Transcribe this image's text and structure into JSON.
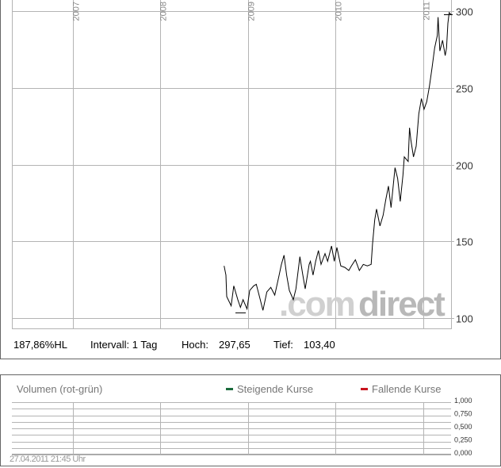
{
  "chart_data": [
    {
      "type": "line",
      "xlabel": "",
      "ylabel": "",
      "x_ticks": [
        "2007",
        "2008",
        "2009",
        "2010",
        "2011"
      ],
      "y_ticks": [
        "100",
        "150",
        "200",
        "250",
        "300"
      ],
      "xlim": [
        2006.3,
        2011.4
      ],
      "ylim": [
        97,
        300
      ],
      "grid": true,
      "series": [
        {
          "points": [
            [
              2008.727,
              134
            ],
            [
              2008.748,
              128
            ],
            [
              2008.757,
              114
            ],
            [
              2008.808,
              108
            ],
            [
              2008.838,
              121
            ],
            [
              2008.884,
              112
            ],
            [
              2008.914,
              107
            ],
            [
              2008.944,
              112
            ],
            [
              2008.989,
              106
            ],
            [
              2009.02,
              118
            ],
            [
              2009.065,
              121
            ],
            [
              2009.095,
              122
            ],
            [
              2009.14,
              112
            ],
            [
              2009.171,
              105
            ],
            [
              2009.216,
              117
            ],
            [
              2009.261,
              120
            ],
            [
              2009.306,
              115
            ],
            [
              2009.352,
              127
            ],
            [
              2009.382,
              135
            ],
            [
              2009.412,
              141
            ],
            [
              2009.442,
              128
            ],
            [
              2009.473,
              118
            ],
            [
              2009.518,
              112
            ],
            [
              2009.548,
              119
            ],
            [
              2009.593,
              140
            ],
            [
              2009.624,
              129
            ],
            [
              2009.654,
              119
            ],
            [
              2009.699,
              135
            ],
            [
              2009.714,
              137
            ],
            [
              2009.744,
              128
            ],
            [
              2009.774,
              137
            ],
            [
              2009.805,
              144
            ],
            [
              2009.835,
              135
            ],
            [
              2009.88,
              142
            ],
            [
              2009.91,
              137
            ],
            [
              2009.955,
              147
            ],
            [
              2009.986,
              137
            ],
            [
              2010.016,
              146
            ],
            [
              2010.061,
              134
            ],
            [
              2010.107,
              133
            ],
            [
              2010.152,
              131
            ],
            [
              2010.182,
              134
            ],
            [
              2010.227,
              138
            ],
            [
              2010.273,
              131
            ],
            [
              2010.318,
              135
            ],
            [
              2010.363,
              134
            ],
            [
              2010.408,
              135
            ],
            [
              2010.423,
              148
            ],
            [
              2010.448,
              164
            ],
            [
              2010.469,
              171
            ],
            [
              2010.508,
              160
            ],
            [
              2010.544,
              167
            ],
            [
              2010.574,
              177
            ],
            [
              2010.605,
              186
            ],
            [
              2010.635,
              172
            ],
            [
              2010.68,
              198
            ],
            [
              2010.71,
              191
            ],
            [
              2010.74,
              176
            ],
            [
              2010.771,
              193
            ],
            [
              2010.786,
              205
            ],
            [
              2010.831,
              202
            ],
            [
              2010.846,
              224
            ],
            [
              2010.861,
              216
            ],
            [
              2010.891,
              205
            ],
            [
              2010.922,
              212
            ],
            [
              2010.952,
              233
            ],
            [
              2010.982,
              243
            ],
            [
              2011.012,
              236
            ],
            [
              2011.043,
              241
            ],
            [
              2011.073,
              251
            ],
            [
              2011.103,
              263
            ],
            [
              2011.133,
              276
            ],
            [
              2011.163,
              284
            ],
            [
              2011.172,
              296
            ],
            [
              2011.193,
              274
            ],
            [
              2011.224,
              281
            ],
            [
              2011.254,
              271
            ],
            [
              2011.269,
              276
            ],
            [
              2011.284,
              292
            ],
            [
              2011.299,
              299
            ],
            [
              2011.323,
              297.65
            ]
          ]
        }
      ],
      "high": 297.65,
      "low": 103.4,
      "watermark": ".comdirect"
    },
    {
      "type": "bar",
      "title": "Volumen (rot-grün)",
      "legend": [
        {
          "name": "Steigende Kurse",
          "color": "#1a6b3c"
        },
        {
          "name": "Fallende Kurse",
          "color": "#c8141e"
        }
      ],
      "legend_placement": "top-right",
      "y_ticks": [
        "1,000",
        "0,750",
        "0,500",
        "0,250",
        "0,000"
      ],
      "ylim": [
        0,
        1
      ],
      "values": []
    }
  ],
  "info": {
    "performance": "187,86%HL",
    "interval": "Intervall: 1 Tag",
    "high_label": "Hoch:",
    "high_value": "297,65",
    "low_label": "Tief:",
    "low_value": "103,40"
  },
  "timestamp": "27.04.2011 21:45 Uhr",
  "colors": {
    "grid": "#b4b4b4",
    "line": "#000000",
    "axis_text": "#333333",
    "muted_text": "#999999"
  }
}
